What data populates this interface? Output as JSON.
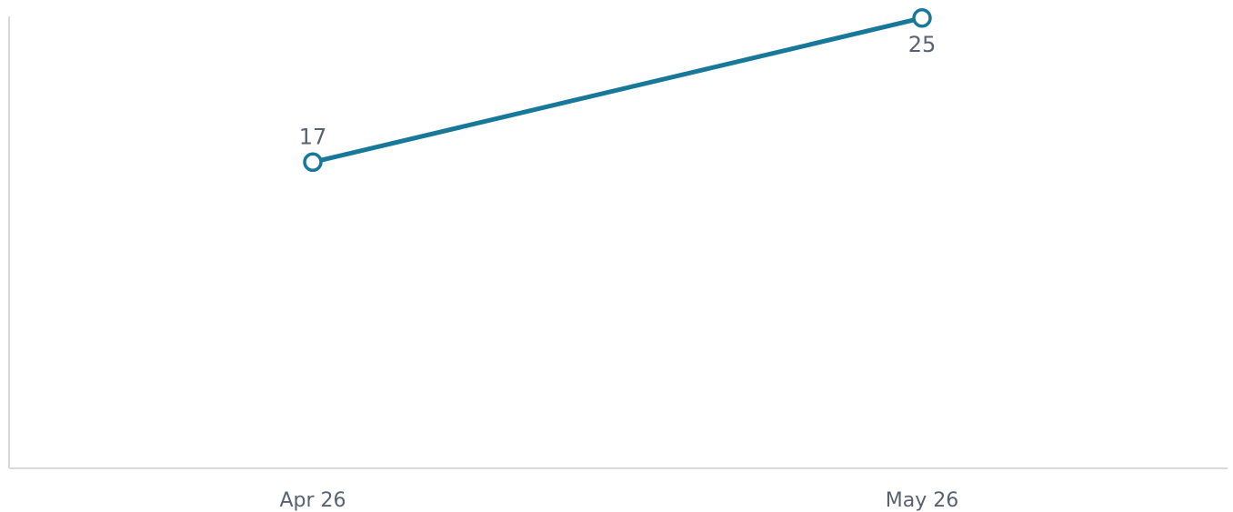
{
  "chart_data": {
    "type": "line",
    "categories": [
      "Apr 26",
      "May 26"
    ],
    "series": [
      {
        "values": [
          17,
          25
        ]
      }
    ],
    "data_labels": [
      "17",
      "25"
    ],
    "ylim": [
      0,
      26
    ],
    "grid": false,
    "legend": "none",
    "colors": {
      "series": "#17789a",
      "axis": "#d9d9d9",
      "text": "#5a6170"
    }
  }
}
